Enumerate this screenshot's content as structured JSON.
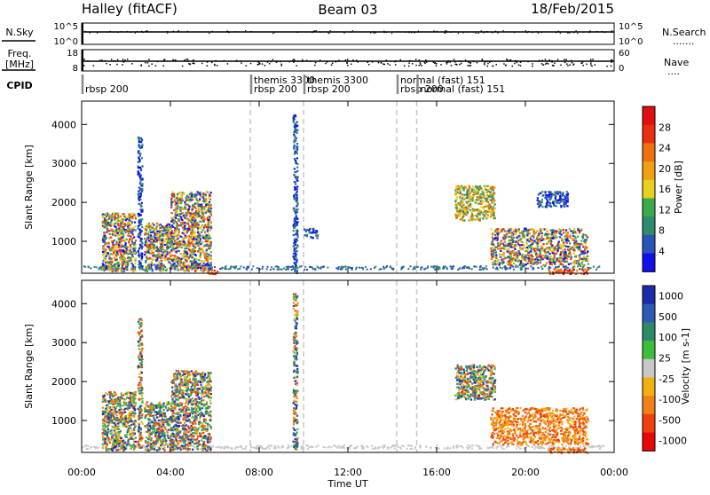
{
  "header": {
    "station": "Halley (fitACF)",
    "beam": "Beam 03",
    "date": "18/Feb/2015"
  },
  "strip_nsky": {
    "label": "N.Sky",
    "left_ticks": [
      "10^5",
      "10^0"
    ],
    "right_ticks": [
      "10^5",
      "10^0"
    ],
    "right_label": "N.Search",
    "right_legend": "......."
  },
  "strip_freq": {
    "label_line1": "Freq.",
    "label_line2": "[MHz]",
    "left_ticks": [
      "18",
      "8"
    ],
    "right_ticks": [
      "60",
      "0"
    ],
    "right_label": "Nave",
    "right_legend": "...."
  },
  "cpid": {
    "label": "CPID",
    "segments": [
      {
        "time": 0.0,
        "labels": [
          "rbsp 200"
        ]
      },
      {
        "time": 7.6,
        "labels": [
          "themis 3300",
          "rbsp 200"
        ]
      },
      {
        "time": 10.0,
        "labels": [
          "themis 3300",
          "rbsp 200"
        ]
      },
      {
        "time": 14.2,
        "labels": [
          "normal (fast) 151",
          "rbsp 200"
        ]
      },
      {
        "time": 15.1,
        "labels": [
          "normal (fast) 151"
        ]
      }
    ]
  },
  "chart_data": [
    {
      "type": "heatmap",
      "name": "power",
      "ylabel": "Slant Range [km]",
      "yticks": [
        1000,
        2000,
        3000,
        4000
      ],
      "ylim": [
        180,
        4600
      ],
      "xlim": [
        0,
        24
      ],
      "colorbar": {
        "label": "Power [dB]",
        "ticks": [
          4,
          8,
          12,
          16,
          20,
          24,
          28
        ]
      },
      "regions": [
        {
          "t0": 0.9,
          "t1": 2.4,
          "r0": 250,
          "r1": 1750,
          "level": "mixed"
        },
        {
          "t0": 2.5,
          "t1": 2.7,
          "r0": 300,
          "r1": 3700,
          "level": "low"
        },
        {
          "t0": 2.8,
          "t1": 4.0,
          "r0": 250,
          "r1": 1500,
          "level": "mixed"
        },
        {
          "t0": 4.0,
          "t1": 5.8,
          "r0": 250,
          "r1": 2300,
          "level": "mixed"
        },
        {
          "t0": 5.6,
          "t1": 6.2,
          "r0": 180,
          "r1": 300,
          "level": "high"
        },
        {
          "t0": 9.5,
          "t1": 9.7,
          "r0": 200,
          "r1": 4300,
          "level": "low"
        },
        {
          "t0": 10.0,
          "t1": 10.6,
          "r0": 1100,
          "r1": 1350,
          "level": "low"
        },
        {
          "t0": 16.8,
          "t1": 18.6,
          "r0": 1550,
          "r1": 2450,
          "level": "mid"
        },
        {
          "t0": 18.4,
          "t1": 22.8,
          "r0": 400,
          "r1": 1350,
          "level": "mixed"
        },
        {
          "t0": 20.5,
          "t1": 21.9,
          "r0": 1900,
          "r1": 2300,
          "level": "low"
        },
        {
          "t0": 21.0,
          "t1": 22.8,
          "r0": 180,
          "r1": 320,
          "level": "high"
        }
      ]
    },
    {
      "type": "heatmap",
      "name": "velocity",
      "ylabel": "Slant Range [km]",
      "yticks": [
        1000,
        2000,
        3000,
        4000
      ],
      "ylim": [
        180,
        4600
      ],
      "xlim": [
        0,
        24
      ],
      "colorbar": {
        "label": "Velocity [m s-1]",
        "ticks": [
          1000,
          500,
          100,
          25,
          -25,
          -100,
          -500,
          -1000
        ]
      },
      "regions": [
        {
          "t0": 0.9,
          "t1": 2.4,
          "r0": 250,
          "r1": 1750,
          "level": "mixed"
        },
        {
          "t0": 2.5,
          "t1": 2.7,
          "r0": 300,
          "r1": 3700,
          "level": "mixed"
        },
        {
          "t0": 2.8,
          "t1": 4.0,
          "r0": 250,
          "r1": 1500,
          "level": "mixed"
        },
        {
          "t0": 4.0,
          "t1": 5.8,
          "r0": 250,
          "r1": 2300,
          "level": "mixed"
        },
        {
          "t0": 9.5,
          "t1": 9.7,
          "r0": 200,
          "r1": 4300,
          "level": "mixed"
        },
        {
          "t0": 16.8,
          "t1": 18.6,
          "r0": 1550,
          "r1": 2450,
          "level": "mixed"
        },
        {
          "t0": 18.4,
          "t1": 22.8,
          "r0": 400,
          "r1": 1350,
          "level": "neg"
        },
        {
          "t0": 21.0,
          "t1": 22.8,
          "r0": 180,
          "r1": 320,
          "level": "neg"
        }
      ]
    }
  ],
  "xaxis": {
    "label": "Time UT",
    "ticks": [
      "00:00",
      "04:00",
      "08:00",
      "12:00",
      "16:00",
      "20:00",
      "00:00"
    ]
  },
  "colors": {
    "power": [
      "#1010e8",
      "#2855b8",
      "#2f8a70",
      "#3aaa4a",
      "#e6d020",
      "#f0a010",
      "#ef7010",
      "#e83010",
      "#e01010"
    ],
    "velocity": [
      "#1c2ca8",
      "#2e5ab4",
      "#2a8a6a",
      "#3cbe3c",
      "#c8c8c8",
      "#f0b010",
      "#f08018",
      "#ee4010",
      "#e80808"
    ]
  }
}
